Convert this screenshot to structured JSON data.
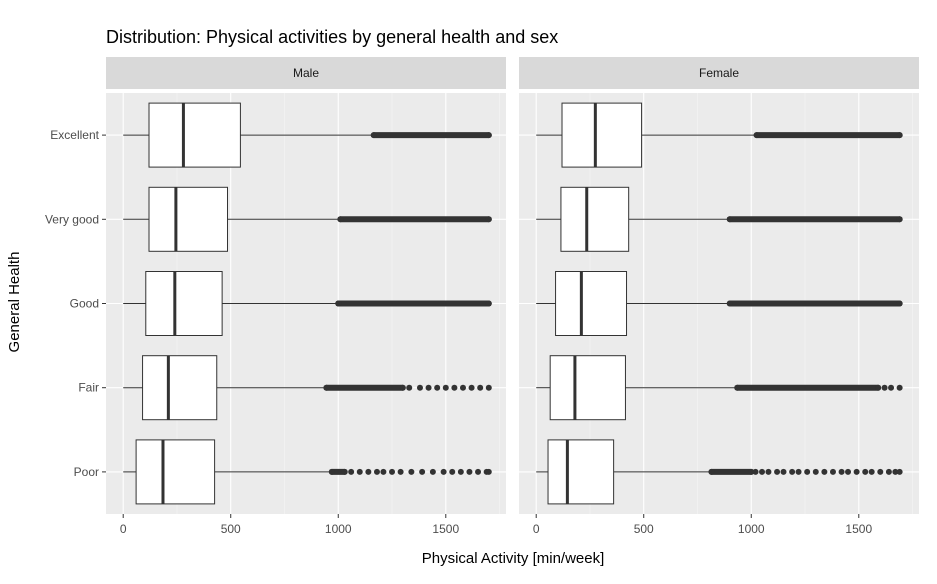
{
  "chart_data": {
    "type": "boxplot",
    "orientation": "horizontal",
    "title": "Distribution: Physical activities by general health and sex",
    "xlabel": "Physical Activity [min/week]",
    "ylabel": "General Health",
    "xlim": [
      -80,
      1780
    ],
    "x_ticks": [
      0,
      500,
      1000,
      1500
    ],
    "categories": [
      "Excellent",
      "Very good",
      "Good",
      "Fair",
      "Poor"
    ],
    "facets": [
      {
        "label": "Male",
        "boxes": [
          {
            "category": "Excellent",
            "whisker_low": 0,
            "q1": 120,
            "median": 280,
            "q3": 545,
            "whisker_high": 1165,
            "outliers_solid": [
              1165,
              1700
            ],
            "outliers_sparse": []
          },
          {
            "category": "Very good",
            "whisker_low": 0,
            "q1": 120,
            "median": 245,
            "q3": 485,
            "whisker_high": 1010,
            "outliers_solid": [
              1010,
              1700
            ],
            "outliers_sparse": []
          },
          {
            "category": "Good",
            "whisker_low": 0,
            "q1": 105,
            "median": 240,
            "q3": 460,
            "whisker_high": 1000,
            "outliers_solid": [
              1000,
              1700
            ],
            "outliers_sparse": []
          },
          {
            "category": "Fair",
            "whisker_low": 0,
            "q1": 90,
            "median": 210,
            "q3": 435,
            "whisker_high": 945,
            "outliers_solid": [
              945,
              1300
            ],
            "outliers_sparse": [
              1330,
              1380,
              1420,
              1460,
              1500,
              1540,
              1580,
              1620,
              1660,
              1700
            ]
          },
          {
            "category": "Poor",
            "whisker_low": 0,
            "q1": 60,
            "median": 185,
            "q3": 425,
            "whisker_high": 970,
            "outliers_solid": [
              970,
              1030
            ],
            "outliers_sparse": [
              1060,
              1100,
              1140,
              1180,
              1210,
              1250,
              1290,
              1340,
              1390,
              1440,
              1490,
              1530,
              1570,
              1610,
              1650,
              1690,
              1700
            ]
          }
        ]
      },
      {
        "label": "Female",
        "boxes": [
          {
            "category": "Excellent",
            "whisker_low": 0,
            "q1": 120,
            "median": 275,
            "q3": 490,
            "whisker_high": 1025,
            "outliers_solid": [
              1025,
              1690
            ],
            "outliers_sparse": []
          },
          {
            "category": "Very good",
            "whisker_low": 0,
            "q1": 115,
            "median": 235,
            "q3": 430,
            "whisker_high": 900,
            "outliers_solid": [
              900,
              1690
            ],
            "outliers_sparse": []
          },
          {
            "category": "Good",
            "whisker_low": 0,
            "q1": 90,
            "median": 210,
            "q3": 420,
            "whisker_high": 900,
            "outliers_solid": [
              900,
              1690
            ],
            "outliers_sparse": []
          },
          {
            "category": "Fair",
            "whisker_low": 0,
            "q1": 65,
            "median": 180,
            "q3": 415,
            "whisker_high": 935,
            "outliers_solid": [
              935,
              1590
            ],
            "outliers_sparse": [
              1620,
              1650,
              1690
            ]
          },
          {
            "category": "Poor",
            "whisker_low": 0,
            "q1": 55,
            "median": 145,
            "q3": 360,
            "whisker_high": 815,
            "outliers_solid": [
              815,
              1000
            ],
            "outliers_sparse": [
              1020,
              1050,
              1080,
              1120,
              1150,
              1190,
              1220,
              1260,
              1300,
              1340,
              1380,
              1420,
              1450,
              1490,
              1530,
              1560,
              1600,
              1640,
              1670,
              1690
            ]
          }
        ]
      }
    ],
    "colors": {
      "panel_background": "#ebebeb",
      "strip_background": "#d9d9d9",
      "grid": "#ffffff",
      "box_fill": "#ffffff",
      "line": "#333333"
    }
  }
}
